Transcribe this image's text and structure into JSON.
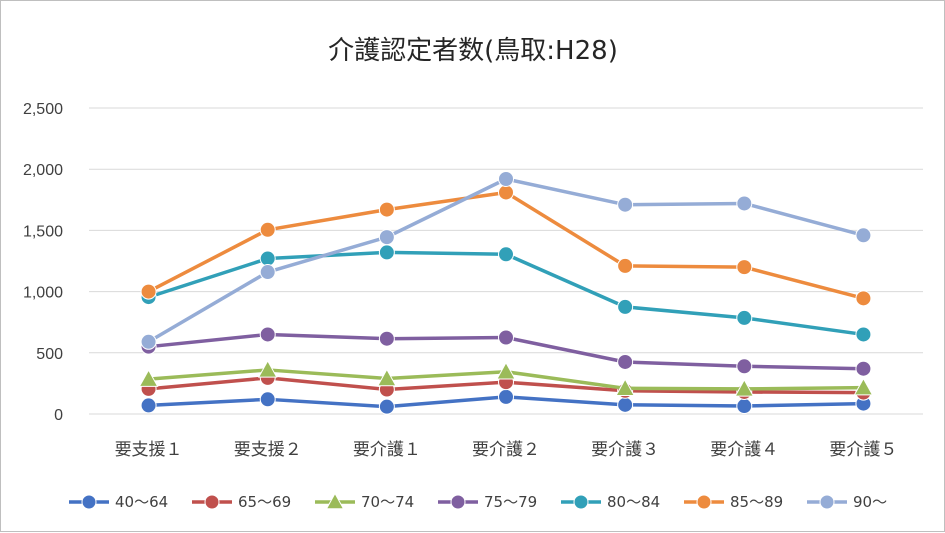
{
  "chart_data": {
    "type": "line",
    "title": "介護認定者数(鳥取:H28)",
    "categories": [
      "要支援１",
      "要支援２",
      "要介護１",
      "要介護２",
      "要介護３",
      "要介護４",
      "要介護５"
    ],
    "ylim": [
      0,
      2500
    ],
    "y_ticks": [
      0,
      500,
      1000,
      1500,
      2000,
      2500
    ],
    "y_tick_labels": [
      "0",
      "500",
      "1,000",
      "1,500",
      "2,000",
      "2,500"
    ],
    "grid": true,
    "legend_position": "bottom",
    "series": [
      {
        "name": "40～64",
        "color": "#4472c4",
        "marker": "circle",
        "values": [
          70,
          120,
          60,
          140,
          75,
          65,
          85
        ]
      },
      {
        "name": "65～69",
        "color": "#c0504d",
        "marker": "circle",
        "values": [
          205,
          295,
          200,
          260,
          190,
          180,
          175
        ]
      },
      {
        "name": "70～74",
        "color": "#9bbb59",
        "marker": "triangle",
        "values": [
          285,
          360,
          290,
          345,
          210,
          205,
          215
        ]
      },
      {
        "name": "75～79",
        "color": "#7f5fa0",
        "marker": "circle",
        "values": [
          550,
          650,
          615,
          625,
          425,
          390,
          370
        ]
      },
      {
        "name": "80～84",
        "color": "#31a0b8",
        "marker": "circle",
        "values": [
          955,
          1270,
          1320,
          1305,
          875,
          785,
          650
        ]
      },
      {
        "name": "85～89",
        "color": "#ed8b3e",
        "marker": "circle",
        "values": [
          1000,
          1505,
          1670,
          1810,
          1210,
          1200,
          945
        ]
      },
      {
        "name": "90～",
        "color": "#95acd6",
        "marker": "circle",
        "values": [
          590,
          1160,
          1445,
          1920,
          1710,
          1720,
          1460
        ]
      }
    ]
  }
}
